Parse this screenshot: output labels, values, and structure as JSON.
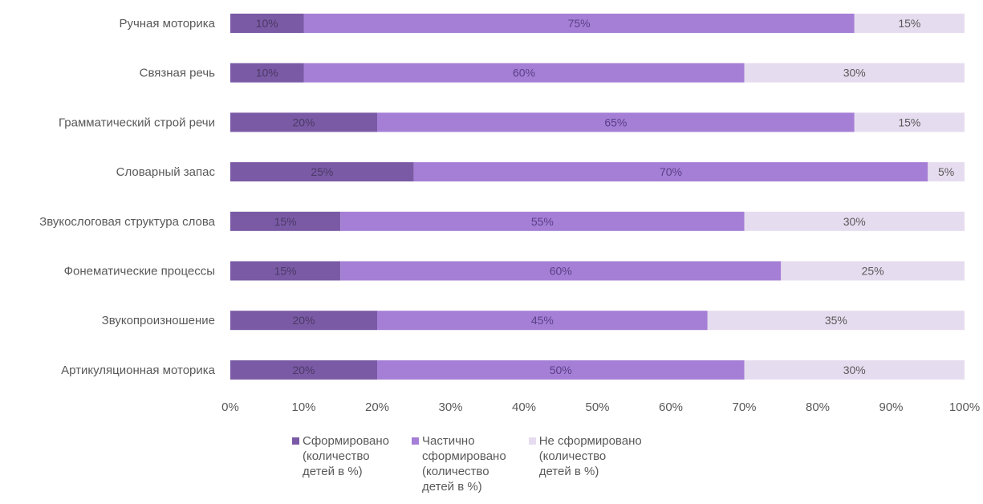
{
  "chart_data": {
    "type": "bar",
    "orientation": "horizontal",
    "stacked": "percent",
    "categories": [
      "Ручная моторика",
      "Связная речь",
      "Грамматический строй речи",
      "Словарный запас",
      "Звукослоговая структура слова",
      "Фонематические процессы",
      "Звукопроизношение",
      "Артикуляционная моторика"
    ],
    "series": [
      {
        "name": "Сформировано\n(количество\nдетей в %)",
        "values": [
          10,
          10,
          20,
          25,
          15,
          15,
          20,
          20
        ],
        "labels": [
          "10%",
          "10%",
          "20%",
          "25%",
          "15%",
          "15%",
          "20%",
          "20%"
        ],
        "color": "#7a5aa5"
      },
      {
        "name": "Частично\nсформировано\n(количество\nдетей в %)",
        "values": [
          75,
          60,
          65,
          70,
          55,
          60,
          45,
          50
        ],
        "labels": [
          "75%",
          "60%",
          "65%",
          "70%",
          "55%",
          "60%",
          "45%",
          "50%"
        ],
        "color": "#a57fd6"
      },
      {
        "name": "Не сформировано\n(количество\nдетей в %)",
        "values": [
          15,
          30,
          15,
          5,
          30,
          25,
          35,
          30
        ],
        "labels": [
          "15%",
          "30%",
          "15%",
          "5%",
          "30%",
          "25%",
          "35%",
          "30%"
        ],
        "color": "#e6dcef"
      }
    ],
    "x_ticks": [
      "0%",
      "10%",
      "20%",
      "30%",
      "40%",
      "50%",
      "60%",
      "70%",
      "80%",
      "90%",
      "100%"
    ],
    "xlim": [
      0,
      100
    ],
    "grid": false,
    "legend_position": "bottom"
  }
}
